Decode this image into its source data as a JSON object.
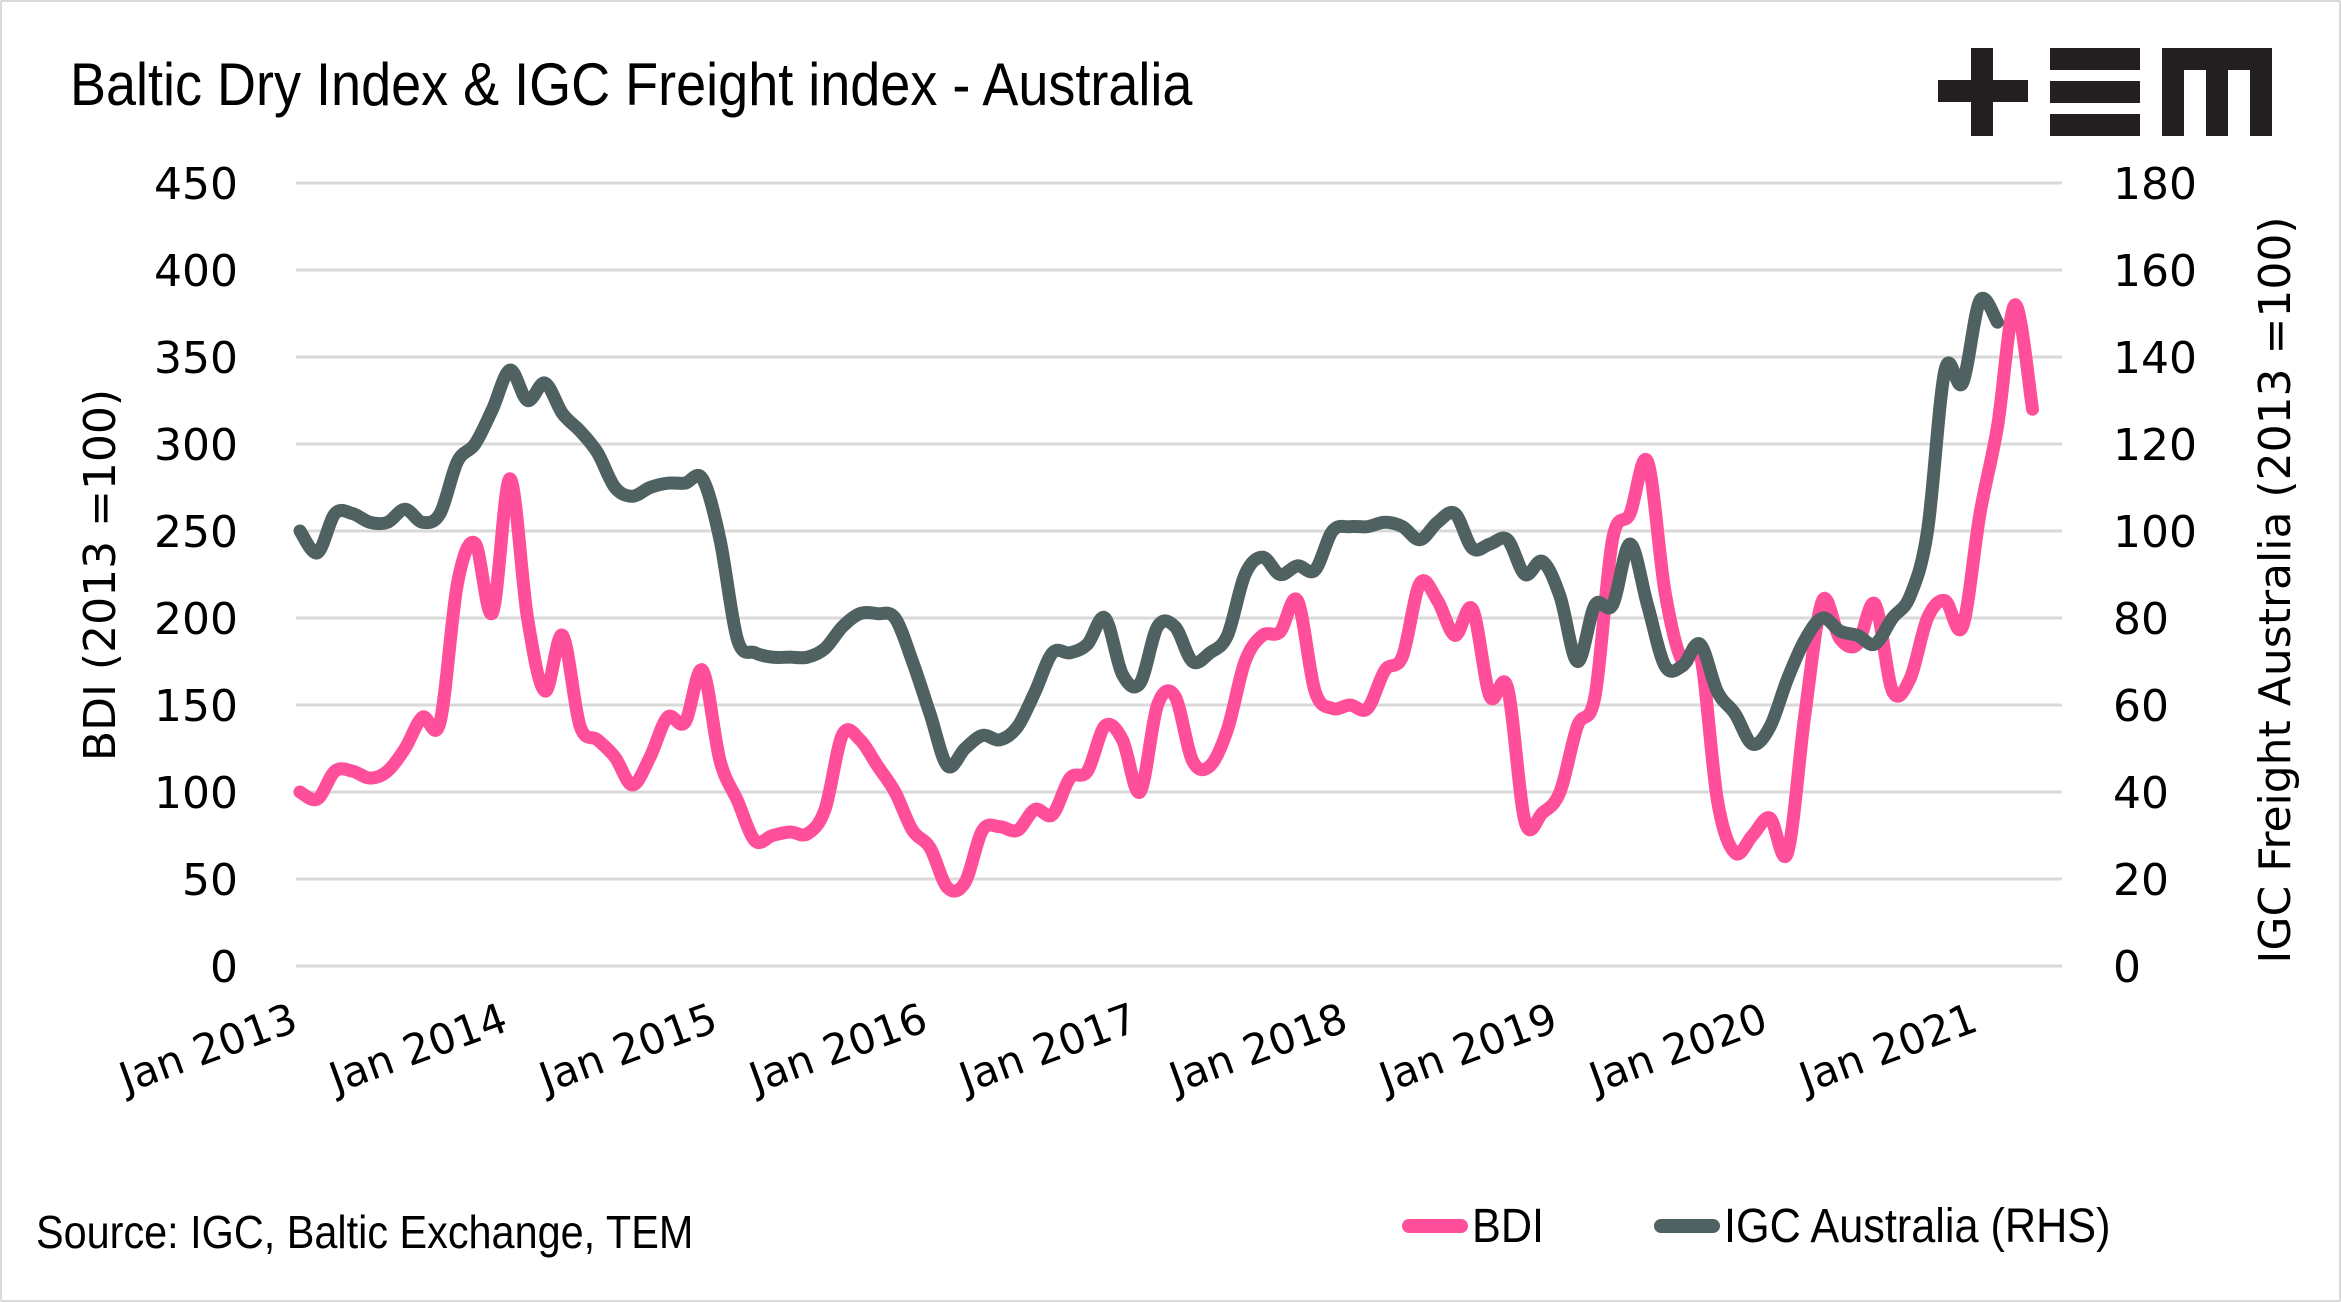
{
  "title": "Baltic Dry Index & IGC Freight index - Australia",
  "logo": {
    "name": "TEM logo",
    "text": "+EM"
  },
  "source": "Source: IGC, Baltic Exchange, TEM",
  "colors": {
    "bdi": "#FF4F9A",
    "igc": "#4F6161",
    "grid": "#d9d9d9",
    "text": "#000000"
  },
  "chart_data": {
    "type": "line",
    "title": "Baltic Dry Index & IGC Freight index - Australia",
    "xlabel": "",
    "ylabel": "BDI (2013 =100)",
    "y2label": "IGC Freight Australia (2013 =100)",
    "ylim": [
      0,
      450
    ],
    "y2lim": [
      0,
      180
    ],
    "yticks": [
      "0",
      "50",
      "100",
      "150",
      "200",
      "250",
      "300",
      "350",
      "400",
      "450"
    ],
    "y2ticks": [
      "0",
      "20",
      "40",
      "60",
      "80",
      "100",
      "120",
      "140",
      "160",
      "180"
    ],
    "xticks": [
      "Jan 2013",
      "Jan 2014",
      "Jan 2015",
      "Jan 2016",
      "Jan 2017",
      "Jan 2018",
      "Jan 2019",
      "Jan 2020",
      "Jan 2021"
    ],
    "x_start": "Jan 2013",
    "x_frequency": "monthly",
    "grid": true,
    "legend_position": "bottom-right",
    "series": [
      {
        "name": "BDI",
        "axis": "left",
        "values": [
          100,
          96,
          112,
          112,
          108,
          112,
          125,
          143,
          140,
          220,
          243,
          203,
          280,
          200,
          158,
          190,
          138,
          130,
          120,
          104,
          120,
          143,
          140,
          170,
          118,
          95,
          72,
          75,
          77,
          76,
          90,
          133,
          130,
          115,
          100,
          78,
          68,
          45,
          48,
          78,
          80,
          78,
          90,
          87,
          108,
          112,
          138,
          130,
          100,
          150,
          155,
          118,
          115,
          136,
          175,
          190,
          192,
          210,
          158,
          148,
          150,
          148,
          170,
          178,
          220,
          210,
          190,
          205,
          155,
          160,
          83,
          88,
          100,
          138,
          155,
          245,
          260,
          290,
          215,
          175,
          180,
          95,
          65,
          75,
          85,
          65,
          145,
          210,
          188,
          185,
          208,
          158,
          165,
          200,
          210,
          195,
          260,
          310,
          380,
          320
        ]
      },
      {
        "name": "IGC Australia (RHS)",
        "axis": "right",
        "values": [
          100,
          95,
          104,
          104,
          102,
          102,
          105,
          102,
          104,
          116,
          120,
          128,
          137,
          130,
          134,
          127,
          123,
          118,
          110,
          108,
          110,
          111,
          111,
          112,
          98,
          75,
          72,
          71,
          71,
          71,
          73,
          78,
          81,
          81,
          80,
          70,
          58,
          46,
          50,
          53,
          52,
          55,
          63,
          72,
          72,
          74,
          80,
          67,
          65,
          78,
          78,
          70,
          72,
          76,
          90,
          94,
          90,
          92,
          91,
          100,
          101,
          101,
          102,
          101,
          98,
          102,
          104,
          96,
          97,
          98,
          90,
          93,
          85,
          70,
          83,
          83,
          97,
          83,
          69,
          69,
          74,
          63,
          58,
          51,
          55,
          66,
          75,
          80,
          77,
          76,
          74,
          80,
          85,
          100,
          137,
          134,
          153,
          148
        ]
      }
    ]
  }
}
